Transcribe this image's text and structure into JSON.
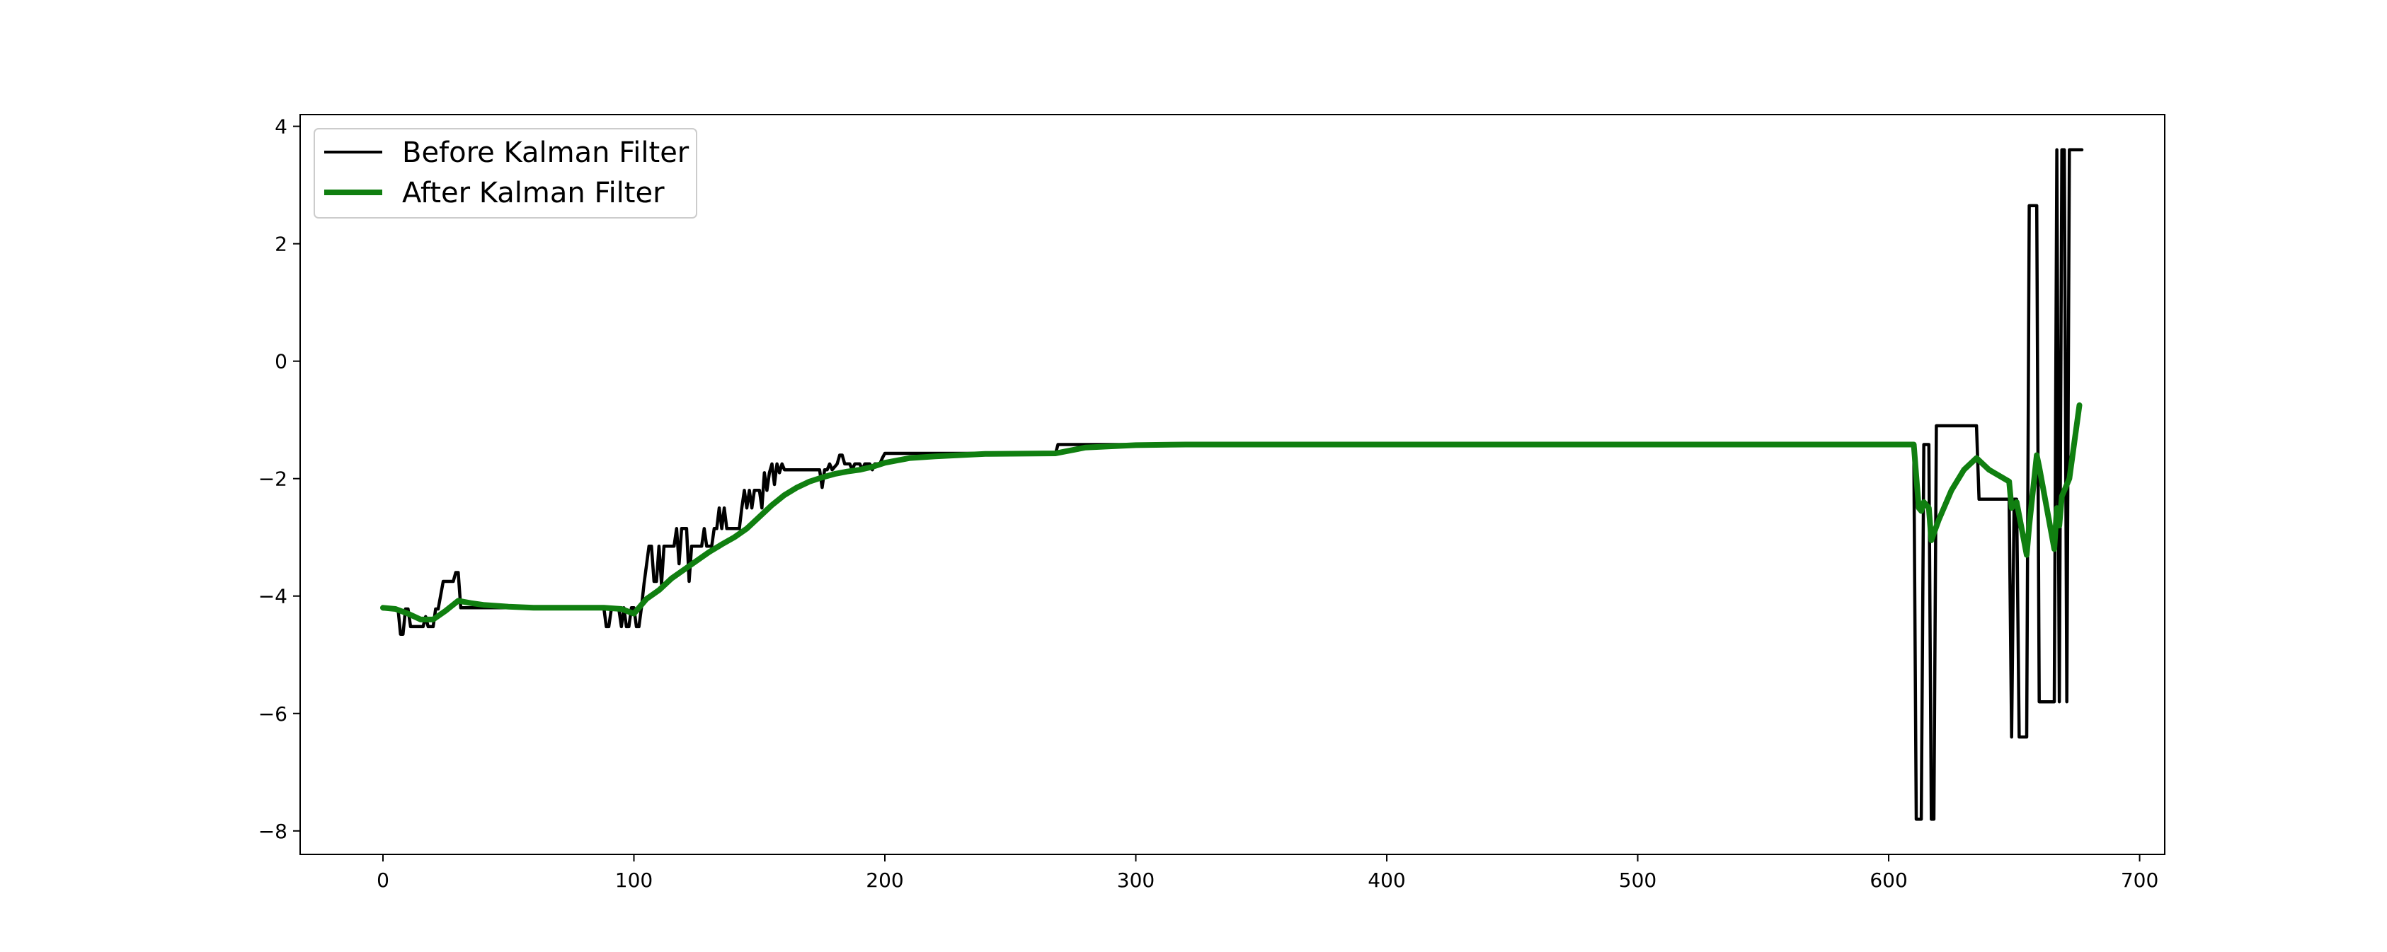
{
  "chart_data": {
    "type": "line",
    "title": "",
    "xlabel": "",
    "ylabel": "",
    "xlim": [
      -33,
      710
    ],
    "ylim": [
      -8.4,
      4.2
    ],
    "xticks": [
      0,
      100,
      200,
      300,
      400,
      500,
      600,
      700
    ],
    "yticks": [
      4,
      2,
      0,
      -2,
      -4,
      -6,
      -8
    ],
    "grid": false,
    "legend_position": "upper-left",
    "series": [
      {
        "name": "Before Kalman Filter",
        "color": "#000000",
        "points": [
          [
            0,
            -4.22
          ],
          [
            6,
            -4.22
          ],
          [
            7,
            -4.65
          ],
          [
            8,
            -4.65
          ],
          [
            9,
            -4.22
          ],
          [
            10,
            -4.22
          ],
          [
            11,
            -4.52
          ],
          [
            16,
            -4.52
          ],
          [
            17,
            -4.35
          ],
          [
            18,
            -4.52
          ],
          [
            20,
            -4.52
          ],
          [
            21,
            -4.22
          ],
          [
            22,
            -4.22
          ],
          [
            24,
            -3.75
          ],
          [
            28,
            -3.75
          ],
          [
            29,
            -3.6
          ],
          [
            30,
            -3.6
          ],
          [
            31,
            -4.2
          ],
          [
            88,
            -4.2
          ],
          [
            89,
            -4.52
          ],
          [
            90,
            -4.52
          ],
          [
            91,
            -4.22
          ],
          [
            94,
            -4.22
          ],
          [
            95,
            -4.52
          ],
          [
            96,
            -4.2
          ],
          [
            97,
            -4.52
          ],
          [
            98,
            -4.52
          ],
          [
            99,
            -4.2
          ],
          [
            100,
            -4.2
          ],
          [
            101,
            -4.52
          ],
          [
            102,
            -4.52
          ],
          [
            103,
            -4.2
          ],
          [
            104,
            -3.8
          ],
          [
            106,
            -3.15
          ],
          [
            107,
            -3.15
          ],
          [
            108,
            -3.75
          ],
          [
            109,
            -3.75
          ],
          [
            110,
            -3.15
          ],
          [
            111,
            -3.8
          ],
          [
            112,
            -3.15
          ],
          [
            116,
            -3.15
          ],
          [
            117,
            -2.85
          ],
          [
            118,
            -3.45
          ],
          [
            119,
            -2.85
          ],
          [
            121,
            -2.85
          ],
          [
            122,
            -3.75
          ],
          [
            123,
            -3.15
          ],
          [
            127,
            -3.15
          ],
          [
            128,
            -2.85
          ],
          [
            129,
            -3.15
          ],
          [
            131,
            -3.15
          ],
          [
            132,
            -2.85
          ],
          [
            133,
            -2.85
          ],
          [
            134,
            -2.5
          ],
          [
            135,
            -2.85
          ],
          [
            136,
            -2.5
          ],
          [
            137,
            -2.85
          ],
          [
            142,
            -2.85
          ],
          [
            143,
            -2.5
          ],
          [
            144,
            -2.2
          ],
          [
            145,
            -2.5
          ],
          [
            146,
            -2.2
          ],
          [
            147,
            -2.5
          ],
          [
            148,
            -2.2
          ],
          [
            150,
            -2.2
          ],
          [
            151,
            -2.5
          ],
          [
            152,
            -1.9
          ],
          [
            153,
            -2.2
          ],
          [
            154,
            -1.9
          ],
          [
            155,
            -1.75
          ],
          [
            156,
            -2.1
          ],
          [
            157,
            -1.75
          ],
          [
            158,
            -1.9
          ],
          [
            159,
            -1.75
          ],
          [
            160,
            -1.85
          ],
          [
            174,
            -1.85
          ],
          [
            175,
            -2.15
          ],
          [
            176,
            -1.85
          ],
          [
            177,
            -1.85
          ],
          [
            178,
            -1.75
          ],
          [
            179,
            -1.85
          ],
          [
            181,
            -1.75
          ],
          [
            182,
            -1.6
          ],
          [
            183,
            -1.6
          ],
          [
            184,
            -1.75
          ],
          [
            186,
            -1.75
          ],
          [
            187,
            -1.85
          ],
          [
            188,
            -1.75
          ],
          [
            190,
            -1.75
          ],
          [
            191,
            -1.85
          ],
          [
            192,
            -1.75
          ],
          [
            194,
            -1.75
          ],
          [
            195,
            -1.85
          ],
          [
            196,
            -1.75
          ],
          [
            198,
            -1.75
          ],
          [
            199,
            -1.65
          ],
          [
            200,
            -1.57
          ],
          [
            268,
            -1.57
          ],
          [
            269,
            -1.42
          ],
          [
            610,
            -1.42
          ],
          [
            611,
            -7.8
          ],
          [
            613,
            -7.8
          ],
          [
            614,
            -1.42
          ],
          [
            616,
            -1.42
          ],
          [
            617,
            -7.8
          ],
          [
            618,
            -7.8
          ],
          [
            619,
            -1.1
          ],
          [
            635,
            -1.1
          ],
          [
            636,
            -2.35
          ],
          [
            648,
            -2.35
          ],
          [
            649,
            -6.4
          ],
          [
            650,
            -2.35
          ],
          [
            651,
            -2.35
          ],
          [
            652,
            -6.4
          ],
          [
            655,
            -6.4
          ],
          [
            656,
            2.65
          ],
          [
            659,
            2.65
          ],
          [
            660,
            -5.8
          ],
          [
            666,
            -5.8
          ],
          [
            667,
            3.6
          ],
          [
            668,
            -5.8
          ],
          [
            669,
            3.6
          ],
          [
            670,
            3.6
          ],
          [
            671,
            -5.8
          ],
          [
            672,
            3.6
          ],
          [
            677,
            3.6
          ]
        ]
      },
      {
        "name": "After Kalman Filter",
        "color": "#107f10",
        "points": [
          [
            0,
            -4.2
          ],
          [
            5,
            -4.22
          ],
          [
            10,
            -4.3
          ],
          [
            15,
            -4.4
          ],
          [
            20,
            -4.4
          ],
          [
            25,
            -4.25
          ],
          [
            30,
            -4.08
          ],
          [
            35,
            -4.12
          ],
          [
            40,
            -4.15
          ],
          [
            50,
            -4.18
          ],
          [
            60,
            -4.2
          ],
          [
            88,
            -4.2
          ],
          [
            95,
            -4.22
          ],
          [
            100,
            -4.3
          ],
          [
            105,
            -4.05
          ],
          [
            110,
            -3.9
          ],
          [
            115,
            -3.7
          ],
          [
            120,
            -3.55
          ],
          [
            125,
            -3.4
          ],
          [
            130,
            -3.25
          ],
          [
            135,
            -3.12
          ],
          [
            140,
            -3.0
          ],
          [
            145,
            -2.85
          ],
          [
            150,
            -2.65
          ],
          [
            155,
            -2.45
          ],
          [
            160,
            -2.28
          ],
          [
            165,
            -2.15
          ],
          [
            170,
            -2.05
          ],
          [
            175,
            -1.98
          ],
          [
            180,
            -1.92
          ],
          [
            185,
            -1.88
          ],
          [
            190,
            -1.85
          ],
          [
            195,
            -1.8
          ],
          [
            200,
            -1.73
          ],
          [
            210,
            -1.65
          ],
          [
            220,
            -1.62
          ],
          [
            240,
            -1.58
          ],
          [
            268,
            -1.57
          ],
          [
            280,
            -1.47
          ],
          [
            300,
            -1.43
          ],
          [
            320,
            -1.42
          ],
          [
            610,
            -1.42
          ],
          [
            612,
            -2.5
          ],
          [
            613,
            -2.55
          ],
          [
            614,
            -2.4
          ],
          [
            616,
            -2.5
          ],
          [
            617,
            -3.05
          ],
          [
            620,
            -2.7
          ],
          [
            625,
            -2.2
          ],
          [
            630,
            -1.85
          ],
          [
            635,
            -1.65
          ],
          [
            640,
            -1.85
          ],
          [
            648,
            -2.05
          ],
          [
            649,
            -2.5
          ],
          [
            651,
            -2.4
          ],
          [
            655,
            -3.3
          ],
          [
            656,
            -2.8
          ],
          [
            659,
            -1.6
          ],
          [
            660,
            -1.8
          ],
          [
            666,
            -3.2
          ],
          [
            667,
            -2.5
          ],
          [
            668,
            -2.8
          ],
          [
            669,
            -2.3
          ],
          [
            672,
            -2.0
          ],
          [
            676,
            -0.75
          ]
        ]
      }
    ]
  }
}
